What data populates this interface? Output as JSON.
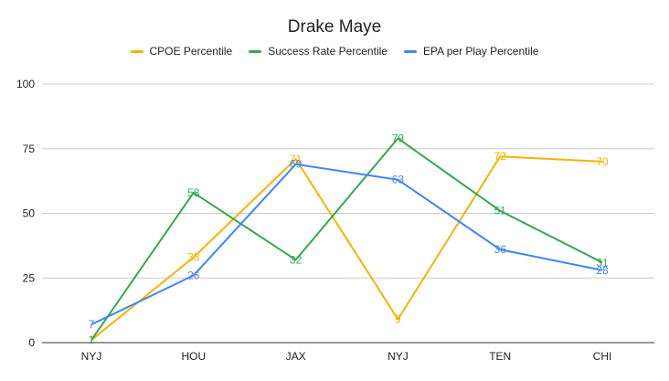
{
  "chart_data": {
    "type": "line",
    "title": "Drake Maye",
    "categories": [
      "NYJ",
      "HOU",
      "JAX",
      "NYJ",
      "TEN",
      "CHI"
    ],
    "ylim": [
      0,
      100
    ],
    "yticks": [
      0,
      25,
      50,
      75,
      100
    ],
    "grid": true,
    "legend_position": "top",
    "series": [
      {
        "name": "CPOE Percentile",
        "color": "#f4b400",
        "values": [
          1,
          33,
          71,
          9,
          72,
          70
        ]
      },
      {
        "name": "Success Rate Percentile",
        "color": "#34a853",
        "values": [
          1,
          58,
          32,
          79,
          51,
          31
        ]
      },
      {
        "name": "EPA per Play Percentile",
        "color": "#4285f4",
        "values": [
          7,
          26,
          69,
          63,
          36,
          28
        ]
      }
    ]
  }
}
